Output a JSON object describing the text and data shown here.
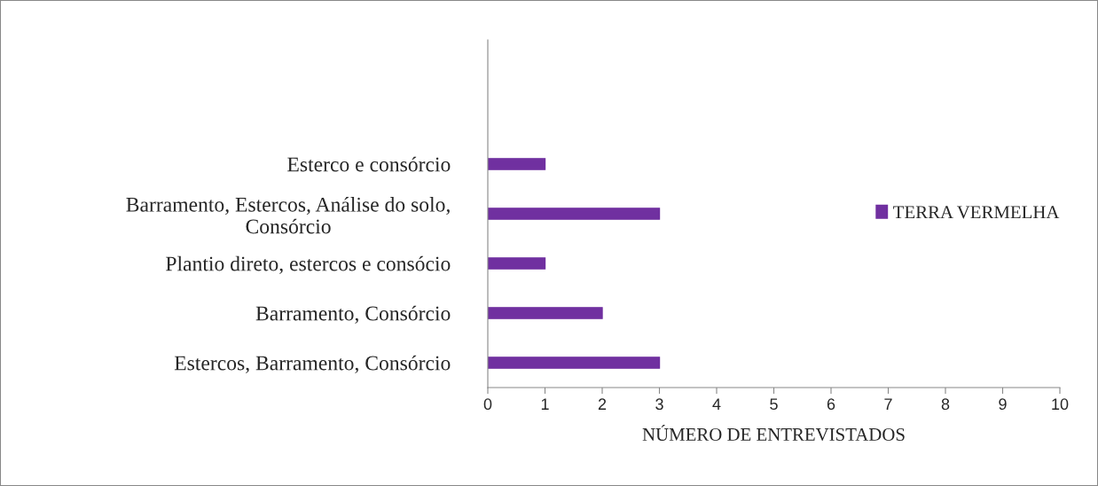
{
  "chart_data": {
    "type": "bar",
    "orientation": "horizontal",
    "xlabel": "NÚMERO DE ENTREVISTADOS",
    "categories": [
      null,
      null,
      "Esterco e consórcio",
      "Barramento, Estercos, Análise do solo,\nConsórcio",
      "Plantio direto, estercos e consócio",
      "Barramento, Consórcio",
      "Estercos, Barramento, Consórcio"
    ],
    "series": [
      {
        "name": "TERRA VERMELHA",
        "color": "#7030a0",
        "values": [
          null,
          null,
          1,
          3,
          1,
          2,
          3
        ]
      }
    ],
    "xlim": [
      0,
      10
    ],
    "xticks": [
      0,
      1,
      2,
      3,
      4,
      5,
      6,
      7,
      8,
      9,
      10
    ],
    "grid": false,
    "legend": "right"
  }
}
